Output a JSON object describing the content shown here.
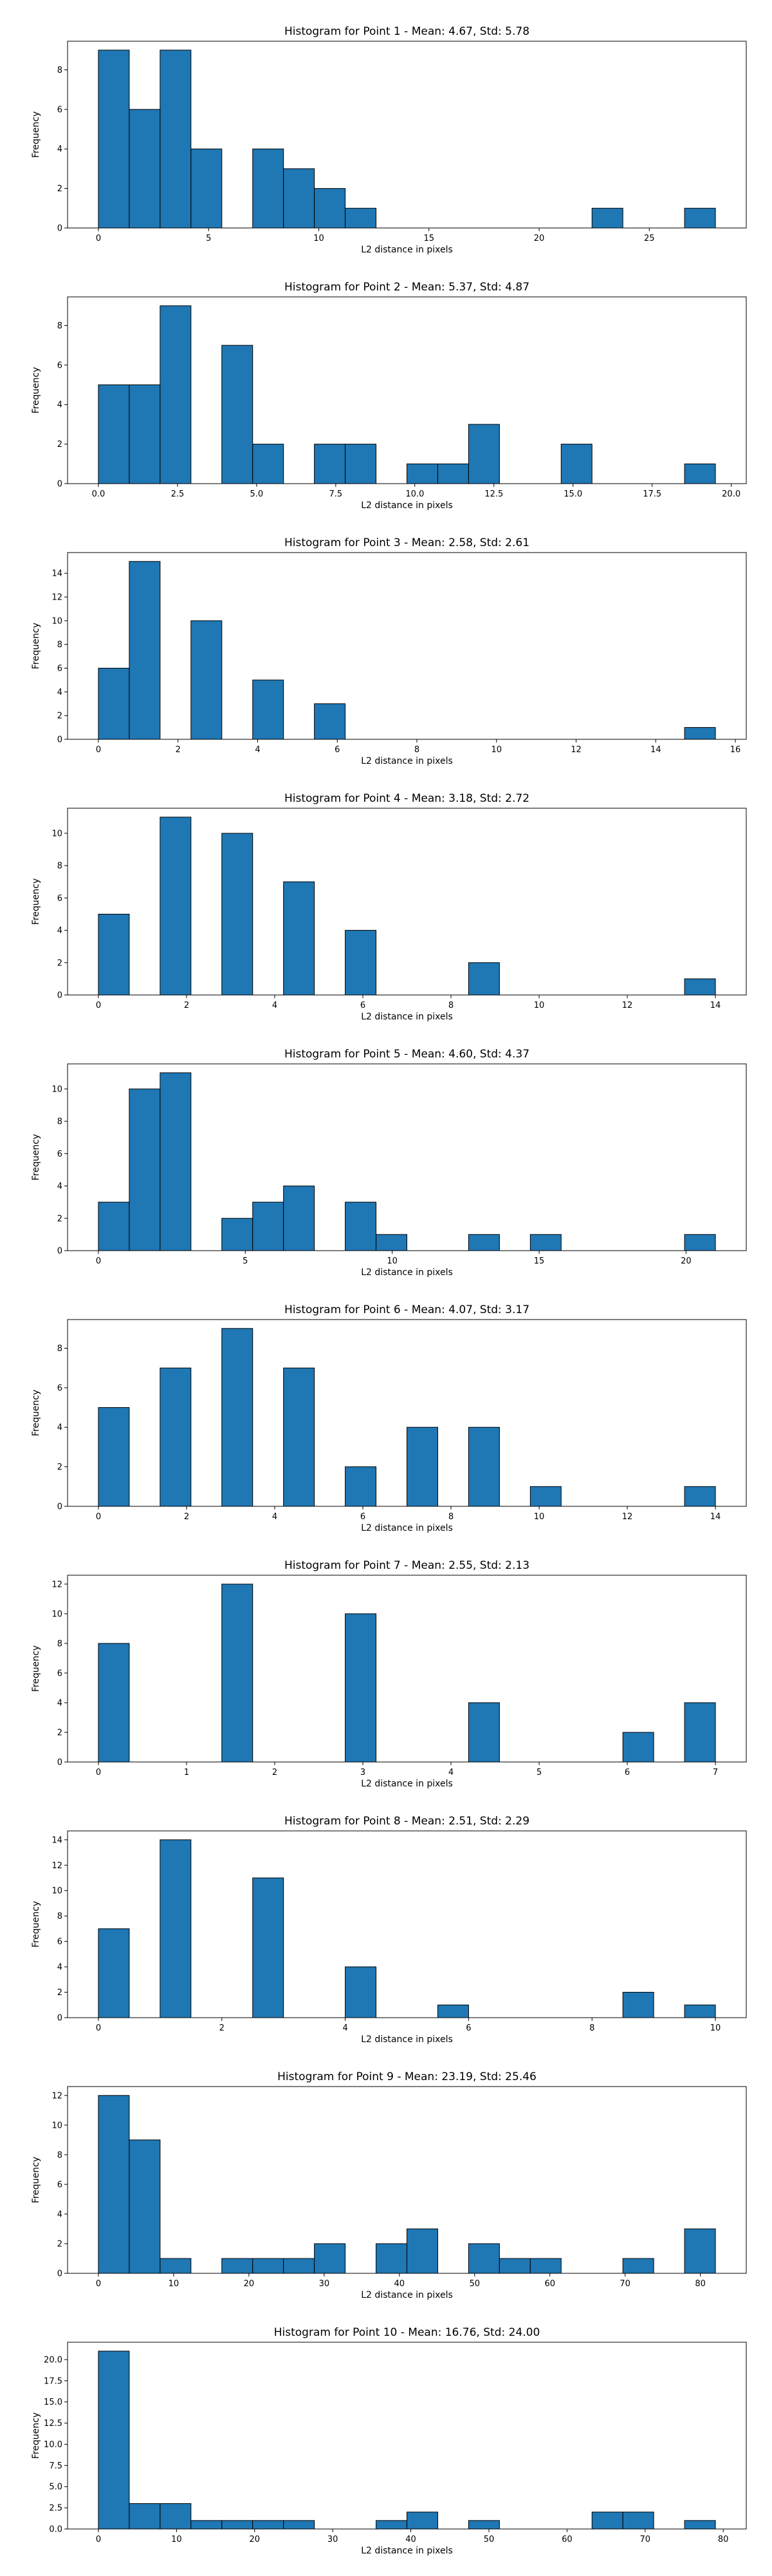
{
  "colors": {
    "bar_fill": "#1f77b4",
    "bar_edge": "#000000",
    "axis": "#000000",
    "background": "#ffffff"
  },
  "chart_data": [
    {
      "type": "bar",
      "title": "Histogram for Point 1 - Mean: 4.67, Std: 5.78",
      "xlabel": "L2 distance in pixels",
      "ylabel": "Frequency",
      "grid": false,
      "xlim": [
        -1.4,
        29.4
      ],
      "ylim": [
        0,
        9.45
      ],
      "xticks": [
        0,
        5,
        10,
        15,
        20,
        25
      ],
      "yticks": [
        0,
        2,
        4,
        6,
        8
      ],
      "bin_edges": [
        0,
        1.4,
        2.8,
        4.2,
        5.6,
        7,
        8.4,
        9.8,
        11.2,
        12.6,
        14,
        15.4,
        16.8,
        18.2,
        19.6,
        21,
        22.4,
        23.8,
        25.2,
        26.6,
        28
      ],
      "counts": [
        9,
        6,
        9,
        4,
        0,
        4,
        3,
        2,
        1,
        0,
        0,
        0,
        0,
        0,
        0,
        0,
        1,
        0,
        0,
        1
      ]
    },
    {
      "type": "bar",
      "title": "Histogram for Point 2 - Mean: 5.37, Std: 4.87",
      "xlabel": "L2 distance in pixels",
      "ylabel": "Frequency",
      "grid": false,
      "xlim": [
        -0.975,
        20.475
      ],
      "ylim": [
        0,
        9.45
      ],
      "xticks": [
        0,
        2.5,
        5,
        7.5,
        10,
        12.5,
        15,
        17.5,
        20
      ],
      "xtick_labels": [
        "0.0",
        "2.5",
        "5.0",
        "7.5",
        "10.0",
        "12.5",
        "15.0",
        "17.5",
        "20.0"
      ],
      "yticks": [
        0,
        2,
        4,
        6,
        8
      ],
      "bin_edges": [
        0,
        0.975,
        1.95,
        2.925,
        3.9,
        4.875,
        5.85,
        6.825,
        7.8,
        8.775,
        9.75,
        10.725,
        11.7,
        12.675,
        13.65,
        14.625,
        15.6,
        16.575,
        17.55,
        18.525,
        19.5
      ],
      "counts": [
        5,
        5,
        9,
        0,
        7,
        2,
        0,
        2,
        2,
        0,
        1,
        1,
        3,
        0,
        0,
        2,
        0,
        0,
        0,
        1
      ]
    },
    {
      "type": "bar",
      "title": "Histogram for Point 3 - Mean: 2.58, Std: 2.61",
      "xlabel": "L2 distance in pixels",
      "ylabel": "Frequency",
      "grid": false,
      "xlim": [
        -0.775,
        16.275
      ],
      "ylim": [
        0,
        15.75
      ],
      "xticks": [
        0,
        2,
        4,
        6,
        8,
        10,
        12,
        14,
        16
      ],
      "yticks": [
        0,
        2,
        4,
        6,
        8,
        10,
        12,
        14
      ],
      "bin_edges": [
        0,
        0.775,
        1.55,
        2.325,
        3.1,
        3.875,
        4.65,
        5.425,
        6.2,
        6.975,
        7.75,
        8.525,
        9.3,
        10.075,
        10.85,
        11.625,
        12.4,
        13.175,
        13.95,
        14.725,
        15.5
      ],
      "counts": [
        6,
        15,
        0,
        10,
        0,
        5,
        0,
        3,
        0,
        0,
        0,
        0,
        0,
        0,
        0,
        0,
        0,
        0,
        0,
        1
      ]
    },
    {
      "type": "bar",
      "title": "Histogram for Point 4 - Mean: 3.18, Std: 2.72",
      "xlabel": "L2 distance in pixels",
      "ylabel": "Frequency",
      "grid": false,
      "xlim": [
        -0.7,
        14.7
      ],
      "ylim": [
        0,
        11.55
      ],
      "xticks": [
        0,
        2,
        4,
        6,
        8,
        10,
        12,
        14
      ],
      "yticks": [
        0,
        2,
        4,
        6,
        8,
        10
      ],
      "bin_edges": [
        0,
        0.7,
        1.4,
        2.1,
        2.8,
        3.5,
        4.2,
        4.9,
        5.6,
        6.3,
        7,
        7.7,
        8.4,
        9.1,
        9.8,
        10.5,
        11.2,
        11.9,
        12.6,
        13.3,
        14
      ],
      "counts": [
        5,
        0,
        11,
        0,
        10,
        0,
        7,
        0,
        4,
        0,
        0,
        0,
        2,
        0,
        0,
        0,
        0,
        0,
        0,
        1
      ]
    },
    {
      "type": "bar",
      "title": "Histogram for Point 5 - Mean: 4.60, Std: 4.37",
      "xlabel": "L2 distance in pixels",
      "ylabel": "Frequency",
      "grid": false,
      "xlim": [
        -1.05,
        22.05
      ],
      "ylim": [
        0,
        11.55
      ],
      "xticks": [
        0,
        5,
        10,
        15,
        20
      ],
      "yticks": [
        0,
        2,
        4,
        6,
        8,
        10
      ],
      "bin_edges": [
        0,
        1.05,
        2.1,
        3.15,
        4.2,
        5.25,
        6.3,
        7.35,
        8.4,
        9.45,
        10.5,
        11.55,
        12.6,
        13.65,
        14.7,
        15.75,
        16.8,
        17.85,
        18.9,
        19.95,
        21
      ],
      "counts": [
        3,
        10,
        11,
        0,
        2,
        3,
        4,
        0,
        3,
        1,
        0,
        0,
        1,
        0,
        1,
        0,
        0,
        0,
        0,
        1
      ]
    },
    {
      "type": "bar",
      "title": "Histogram for Point 6 - Mean: 4.07, Std: 3.17",
      "xlabel": "L2 distance in pixels",
      "ylabel": "Frequency",
      "grid": false,
      "xlim": [
        -0.7,
        14.7
      ],
      "ylim": [
        0,
        9.45
      ],
      "xticks": [
        0,
        2,
        4,
        6,
        8,
        10,
        12,
        14
      ],
      "yticks": [
        0,
        2,
        4,
        6,
        8
      ],
      "bin_edges": [
        0,
        0.7,
        1.4,
        2.1,
        2.8,
        3.5,
        4.2,
        4.9,
        5.6,
        6.3,
        7,
        7.7,
        8.4,
        9.1,
        9.8,
        10.5,
        11.2,
        11.9,
        12.6,
        13.3,
        14
      ],
      "counts": [
        5,
        0,
        7,
        0,
        9,
        0,
        7,
        0,
        2,
        0,
        4,
        0,
        4,
        0,
        1,
        0,
        0,
        0,
        0,
        1
      ]
    },
    {
      "type": "bar",
      "title": "Histogram for Point 7 - Mean: 2.55, Std: 2.13",
      "xlabel": "L2 distance in pixels",
      "ylabel": "Frequency",
      "grid": false,
      "xlim": [
        -0.35,
        7.35
      ],
      "ylim": [
        0,
        12.6
      ],
      "xticks": [
        0,
        1,
        2,
        3,
        4,
        5,
        6,
        7
      ],
      "yticks": [
        0,
        2,
        4,
        6,
        8,
        10,
        12
      ],
      "bin_edges": [
        0,
        0.35,
        0.7,
        1.05,
        1.4,
        1.75,
        2.1,
        2.45,
        2.8,
        3.15,
        3.5,
        3.85,
        4.2,
        4.55,
        4.9,
        5.25,
        5.6,
        5.95,
        6.3,
        6.65,
        7
      ],
      "counts": [
        8,
        0,
        0,
        0,
        12,
        0,
        0,
        0,
        10,
        0,
        0,
        0,
        4,
        0,
        0,
        0,
        0,
        2,
        0,
        4
      ]
    },
    {
      "type": "bar",
      "title": "Histogram for Point 8 - Mean: 2.51, Std: 2.29",
      "xlabel": "L2 distance in pixels",
      "ylabel": "Frequency",
      "grid": false,
      "xlim": [
        -0.5,
        10.5
      ],
      "ylim": [
        0,
        14.7
      ],
      "xticks": [
        0,
        2,
        4,
        6,
        8,
        10
      ],
      "yticks": [
        0,
        2,
        4,
        6,
        8,
        10,
        12,
        14
      ],
      "bin_edges": [
        0,
        0.5,
        1,
        1.5,
        2,
        2.5,
        3,
        3.5,
        4,
        4.5,
        5,
        5.5,
        6,
        6.5,
        7,
        7.5,
        8,
        8.5,
        9,
        9.5,
        10
      ],
      "counts": [
        7,
        0,
        14,
        0,
        0,
        11,
        0,
        0,
        4,
        0,
        0,
        1,
        0,
        0,
        0,
        0,
        0,
        2,
        0,
        1
      ]
    },
    {
      "type": "bar",
      "title": "Histogram for Point 9 - Mean: 23.19, Std: 25.46",
      "xlabel": "L2 distance in pixels",
      "ylabel": "Frequency",
      "grid": false,
      "xlim": [
        -4.1,
        86.1
      ],
      "ylim": [
        0,
        12.6
      ],
      "xticks": [
        0,
        10,
        20,
        30,
        40,
        50,
        60,
        70,
        80
      ],
      "yticks": [
        0,
        2,
        4,
        6,
        8,
        10,
        12
      ],
      "bin_edges": [
        0,
        4.1,
        8.2,
        12.3,
        16.4,
        20.5,
        24.6,
        28.7,
        32.8,
        36.9,
        41,
        45.1,
        49.2,
        53.3,
        57.4,
        61.5,
        65.6,
        69.7,
        73.8,
        77.9,
        82
      ],
      "counts": [
        12,
        9,
        1,
        0,
        1,
        1,
        1,
        2,
        0,
        2,
        3,
        0,
        2,
        1,
        1,
        0,
        0,
        1,
        0,
        3
      ]
    },
    {
      "type": "bar",
      "title": "Histogram for Point 10 - Mean: 16.76, Std: 24.00",
      "xlabel": "L2 distance in pixels",
      "ylabel": "Frequency",
      "grid": false,
      "xlim": [
        -3.95,
        82.95
      ],
      "ylim": [
        0,
        22.05
      ],
      "xticks": [
        0,
        10,
        20,
        30,
        40,
        50,
        60,
        70,
        80
      ],
      "yticks": [
        0,
        2.5,
        5,
        7.5,
        10,
        12.5,
        15,
        17.5,
        20
      ],
      "ytick_labels": [
        "0.0",
        "2.5",
        "5.0",
        "7.5",
        "10.0",
        "12.5",
        "15.0",
        "17.5",
        "20.0"
      ],
      "bin_edges": [
        0,
        3.95,
        7.9,
        11.85,
        15.8,
        19.75,
        23.7,
        27.65,
        31.6,
        35.55,
        39.5,
        43.45,
        47.4,
        51.35,
        55.3,
        59.25,
        63.2,
        67.15,
        71.1,
        75.05,
        79
      ],
      "counts": [
        21,
        3,
        3,
        1,
        1,
        1,
        1,
        0,
        0,
        1,
        2,
        0,
        1,
        0,
        0,
        0,
        2,
        2,
        0,
        1
      ]
    }
  ]
}
